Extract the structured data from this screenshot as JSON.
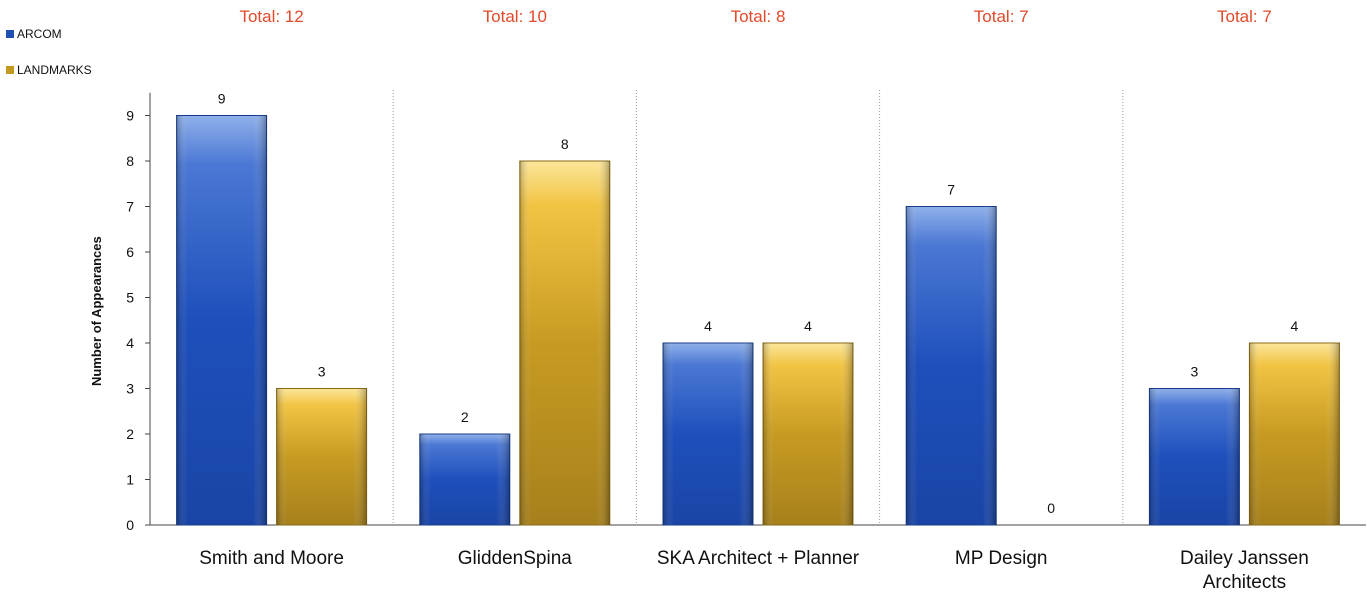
{
  "chart_data": {
    "type": "bar",
    "categories": [
      "Smith and Moore",
      "GliddenSpina",
      "SKA Architect + Planner",
      "MP Design",
      "Dailey Janssen Architects"
    ],
    "category_lines": [
      [
        "Smith and Moore"
      ],
      [
        "GliddenSpina"
      ],
      [
        "SKA Architect + Planner"
      ],
      [
        "MP Design"
      ],
      [
        "Dailey Janssen",
        "Architects"
      ]
    ],
    "series": [
      {
        "name": "ARCOM",
        "values": [
          9,
          2,
          4,
          7,
          3
        ],
        "color": "#1f4fb5"
      },
      {
        "name": "LANDMARKS",
        "values": [
          3,
          8,
          4,
          0,
          4
        ],
        "color": "#c49a1e"
      }
    ],
    "data_labels": [
      [
        "9",
        "2",
        "4",
        "7",
        "3"
      ],
      [
        "3",
        "8",
        "4",
        "0",
        "4"
      ]
    ],
    "totals": [
      "Total: 12",
      "Total: 10",
      "Total: 8",
      "Total: 7",
      "Total: 7"
    ],
    "totals_color": "#e2492a",
    "yticks": [
      "0",
      "1",
      "2",
      "3",
      "4",
      "5",
      "6",
      "7",
      "8",
      "9"
    ],
    "ylabel": "Number of Appearances",
    "xlabel": "",
    "ylim": [
      0,
      9.5
    ],
    "legend_position": "top-left",
    "grid": "vertical dotted separators between categories"
  }
}
